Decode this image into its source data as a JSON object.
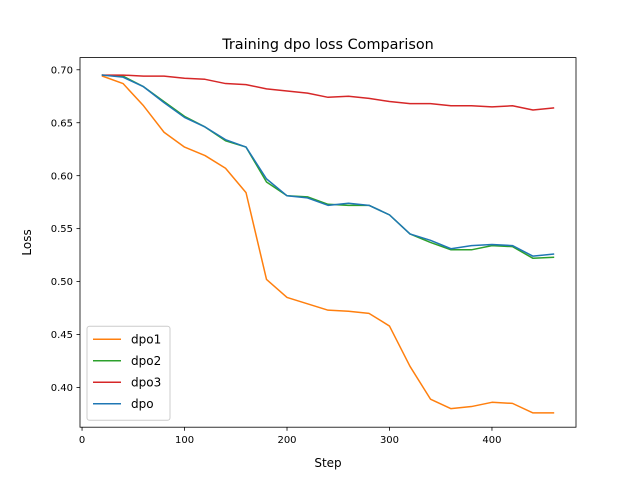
{
  "chart_data": {
    "type": "line",
    "title": "Training dpo loss Comparison",
    "xlabel": "Step",
    "ylabel": "Loss",
    "xlim": [
      -2,
      482
    ],
    "ylim": [
      0.3625,
      0.7115
    ],
    "xticks": [
      0,
      100,
      200,
      300,
      400
    ],
    "xtick_labels": [
      "0",
      "100",
      "200",
      "300",
      "400"
    ],
    "yticks": [
      0.4,
      0.45,
      0.5,
      0.55,
      0.6,
      0.65,
      0.7
    ],
    "ytick_labels": [
      "0.40",
      "0.45",
      "0.50",
      "0.55",
      "0.60",
      "0.65",
      "0.70"
    ],
    "grid": false,
    "legend_position": "lower-left",
    "x": [
      20,
      40,
      60,
      80,
      100,
      120,
      140,
      160,
      180,
      200,
      220,
      240,
      260,
      280,
      300,
      320,
      340,
      360,
      380,
      400,
      420,
      440,
      460
    ],
    "series": [
      {
        "name": "dpo1",
        "color": "#ff7f0e",
        "values": [
          0.694,
          0.687,
          0.666,
          0.641,
          0.627,
          0.619,
          0.607,
          0.584,
          0.502,
          0.485,
          0.479,
          0.473,
          0.472,
          0.47,
          0.458,
          0.42,
          0.389,
          0.38,
          0.382,
          0.386,
          0.385,
          0.376,
          0.376
        ]
      },
      {
        "name": "dpo2",
        "color": "#2ca02c",
        "values": [
          0.695,
          0.694,
          0.684,
          0.67,
          0.656,
          0.646,
          0.633,
          0.627,
          0.594,
          0.581,
          0.58,
          0.573,
          0.572,
          0.572,
          0.563,
          0.545,
          0.537,
          0.53,
          0.53,
          0.534,
          0.533,
          0.522,
          0.523
        ]
      },
      {
        "name": "dpo3",
        "color": "#d62728",
        "values": [
          0.695,
          0.695,
          0.694,
          0.694,
          0.692,
          0.691,
          0.687,
          0.686,
          0.682,
          0.68,
          0.678,
          0.674,
          0.675,
          0.673,
          0.67,
          0.668,
          0.668,
          0.666,
          0.666,
          0.665,
          0.666,
          0.662,
          0.664
        ]
      },
      {
        "name": "dpo",
        "color": "#1f77b4",
        "values": [
          0.695,
          0.693,
          0.684,
          0.669,
          0.655,
          0.646,
          0.634,
          0.627,
          0.597,
          0.581,
          0.579,
          0.572,
          0.574,
          0.572,
          0.563,
          0.545,
          0.539,
          0.531,
          0.534,
          0.535,
          0.534,
          0.524,
          0.526
        ]
      }
    ]
  }
}
